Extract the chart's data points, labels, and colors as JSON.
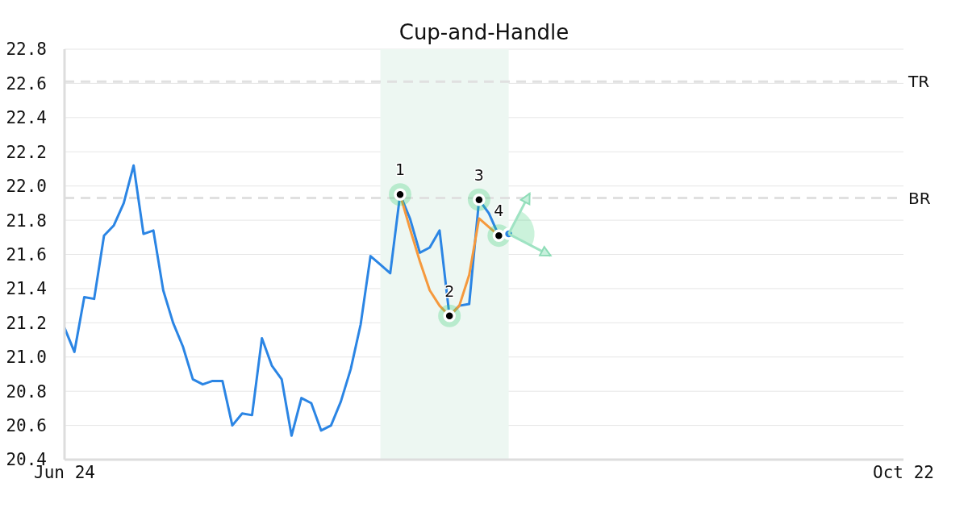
{
  "chart_data": {
    "type": "line",
    "title": "Cup-and-Handle",
    "categories": [
      "Jun 24",
      null,
      null,
      null,
      null,
      null,
      null,
      null,
      null,
      null,
      null,
      null,
      null,
      null,
      null,
      null,
      null,
      null,
      null,
      null,
      null,
      null,
      null,
      null,
      null,
      null,
      null,
      null,
      null,
      null,
      null,
      null,
      null,
      null,
      null,
      null,
      null,
      null,
      null,
      null,
      null,
      null,
      null,
      null,
      null,
      null,
      null,
      null,
      null,
      null,
      null,
      null,
      null,
      null,
      null,
      null,
      null,
      null,
      null,
      null,
      null,
      null,
      null,
      null,
      null,
      null,
      null,
      null,
      null,
      null,
      null,
      null,
      null,
      null,
      null,
      null,
      null,
      null,
      null,
      null,
      null,
      null,
      null,
      null,
      null,
      "Oct 22"
    ],
    "ylim": [
      20.4,
      22.8
    ],
    "yticks": [
      20.4,
      20.6,
      20.8,
      {
        "value": 21,
        "label": "21.0"
      },
      21.2,
      21.4,
      21.6,
      21.8,
      {
        "value": 22,
        "label": "22.0"
      },
      22.2,
      22.4,
      22.6,
      22.8
    ],
    "grid": "y",
    "marker": "none",
    "line_style": "solid",
    "series": [
      {
        "color": "#2b85e4",
        "values": [
          21.17,
          21.03,
          21.35,
          21.34,
          21.71,
          21.77,
          21.9,
          22.12,
          21.72,
          21.74,
          21.39,
          21.2,
          21.06,
          20.87,
          20.84,
          20.86,
          20.86,
          20.6,
          20.67,
          20.66,
          21.11,
          20.95,
          20.87,
          20.54,
          20.76,
          20.73,
          20.57,
          20.6,
          20.74,
          20.93,
          21.19,
          21.59,
          21.54,
          21.49,
          21.95,
          21.81,
          21.61,
          21.64,
          21.74,
          21.24,
          21.3,
          21.31,
          21.92,
          21.84,
          21.71,
          21.72,
          null,
          null,
          null,
          null,
          null,
          null,
          null,
          null,
          null,
          null,
          null,
          null,
          null,
          null,
          null,
          null,
          null,
          null,
          null,
          null,
          null,
          null,
          null,
          null,
          null,
          null,
          null,
          null,
          null,
          null,
          null,
          null,
          null,
          null,
          null,
          null,
          null,
          null,
          null,
          null
        ]
      },
      {
        "color": "#f5993d",
        "values": [
          null,
          null,
          null,
          null,
          null,
          null,
          null,
          null,
          null,
          null,
          null,
          null,
          null,
          null,
          null,
          null,
          null,
          null,
          null,
          null,
          null,
          null,
          null,
          null,
          null,
          null,
          null,
          null,
          null,
          null,
          null,
          null,
          null,
          null,
          21.95,
          21.75,
          21.56,
          21.39,
          21.3,
          21.24,
          21.3,
          21.48,
          21.81,
          21.76,
          21.71,
          null,
          null,
          null,
          null,
          null,
          null,
          null,
          null,
          null,
          null,
          null,
          null,
          null,
          null,
          null,
          null,
          null,
          null,
          null,
          null,
          null,
          null,
          null,
          null,
          null,
          null,
          null,
          null,
          null,
          null,
          null,
          null,
          null,
          null,
          null,
          null,
          null,
          null,
          null,
          null,
          null
        ]
      },
      {
        "type": "scatter",
        "color": "#000000",
        "marker": "circle",
        "values": [
          null,
          null,
          null,
          null,
          null,
          null,
          null,
          null,
          null,
          null,
          null,
          null,
          null,
          null,
          null,
          null,
          null,
          null,
          null,
          null,
          null,
          null,
          null,
          null,
          null,
          null,
          null,
          null,
          null,
          null,
          null,
          null,
          null,
          null,
          21.95,
          null,
          null,
          null,
          null,
          21.24,
          null,
          null,
          21.92,
          null,
          21.71,
          null,
          null,
          null,
          null,
          null,
          null,
          null,
          null,
          null,
          null,
          null,
          null,
          null,
          null,
          null,
          null,
          null,
          null,
          null,
          null,
          null,
          null,
          null,
          null,
          null,
          null,
          null,
          null,
          null,
          null,
          null,
          null,
          null,
          null,
          null,
          null,
          null,
          null,
          null,
          null,
          null
        ]
      },
      {
        "type": "scatter",
        "color": "#2b85e4",
        "marker": "circle",
        "values": [
          null,
          null,
          null,
          null,
          null,
          null,
          null,
          null,
          null,
          null,
          null,
          null,
          null,
          null,
          null,
          null,
          null,
          null,
          null,
          null,
          null,
          null,
          null,
          null,
          null,
          null,
          null,
          null,
          null,
          null,
          null,
          null,
          null,
          null,
          null,
          null,
          null,
          null,
          null,
          null,
          null,
          null,
          null,
          null,
          null,
          21.72,
          null,
          null,
          null,
          null,
          null,
          null,
          null,
          null,
          null,
          null,
          null,
          null,
          null,
          null,
          null,
          null,
          null,
          null,
          null,
          null,
          null,
          null,
          null,
          null,
          null,
          null,
          null,
          null,
          null,
          null,
          null,
          null,
          null,
          null,
          null,
          null,
          null,
          null,
          null,
          null
        ]
      }
    ],
    "ref_lines": [
      {
        "axis": "y",
        "value": 22.61,
        "label": "TR",
        "color": "#e0e0e0",
        "line_style": "dashed"
      },
      {
        "axis": "y",
        "value": 21.93,
        "label": "BR",
        "color": "#e0e0e0",
        "line_style": "dashed"
      }
    ],
    "annotations": [
      {
        "text": "1",
        "y": 21.95
      },
      {
        "text": "2",
        "y": 21.24
      },
      {
        "text": "3",
        "y": 21.92
      },
      {
        "text": "4",
        "y": 21.71
      }
    ]
  }
}
